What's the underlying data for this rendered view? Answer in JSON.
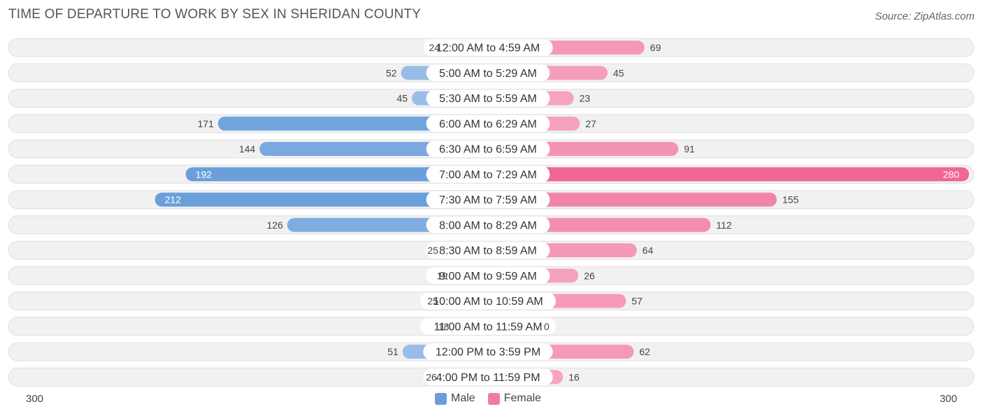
{
  "title": "TIME OF DEPARTURE TO WORK BY SEX IN SHERIDAN COUNTY",
  "source": "Source: ZipAtlas.com",
  "colors": {
    "male_light": "#a8c8ec",
    "male_dark": "#6a9fdb",
    "female_light": "#f6a8c2",
    "female_dark": "#ef6792",
    "row_bg": "#f1f1f1",
    "row_border": "#e0e0e0"
  },
  "axis": {
    "left_label": "300",
    "right_label": "300"
  },
  "legend": [
    {
      "label": "Male",
      "color": "#6a9fdb"
    },
    {
      "label": "Female",
      "color": "#f07aa0"
    }
  ],
  "chart_data": {
    "type": "bar",
    "orientation": "horizontal-diverging",
    "title": "TIME OF DEPARTURE TO WORK BY SEX IN SHERIDAN COUNTY",
    "categories": [
      "12:00 AM to 4:59 AM",
      "5:00 AM to 5:29 AM",
      "5:30 AM to 5:59 AM",
      "6:00 AM to 6:29 AM",
      "6:30 AM to 6:59 AM",
      "7:00 AM to 7:29 AM",
      "7:30 AM to 7:59 AM",
      "8:00 AM to 8:29 AM",
      "8:30 AM to 8:59 AM",
      "9:00 AM to 9:59 AM",
      "10:00 AM to 10:59 AM",
      "11:00 AM to 11:59 AM",
      "12:00 PM to 3:59 PM",
      "4:00 PM to 11:59 PM"
    ],
    "series": [
      {
        "name": "Male",
        "values": [
          24,
          52,
          45,
          171,
          144,
          192,
          212,
          126,
          25,
          19,
          25,
          18,
          51,
          26
        ]
      },
      {
        "name": "Female",
        "values": [
          69,
          45,
          23,
          27,
          91,
          280,
          155,
          112,
          64,
          26,
          57,
          0,
          62,
          16
        ]
      }
    ],
    "xlim": [
      -300,
      300
    ],
    "legend_position": "bottom-center",
    "grid": false
  }
}
